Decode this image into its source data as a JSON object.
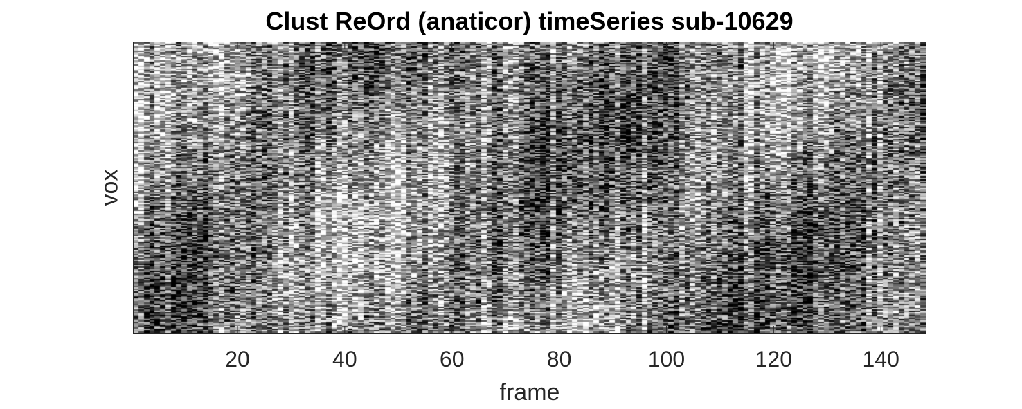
{
  "chart_data": {
    "type": "heatmap",
    "title": "Clust ReOrd (anaticor) timeSeries sub-10629",
    "xlabel": "frame",
    "ylabel": "vox",
    "xlim": [
      0.5,
      148.5
    ],
    "x_ticks": [
      20,
      40,
      60,
      80,
      100,
      120,
      140
    ],
    "x_tick_labels": [
      "20",
      "40",
      "60",
      "80",
      "100",
      "120",
      "140"
    ],
    "y_tick_labels": [],
    "colormap": "gray",
    "grid": false,
    "legend": "none",
    "data_description": "voxel x frame time-series intensities, noisy grayscale texture"
  },
  "colors": {
    "axis": "#262626",
    "title": "#000000",
    "background": "#ffffff"
  }
}
